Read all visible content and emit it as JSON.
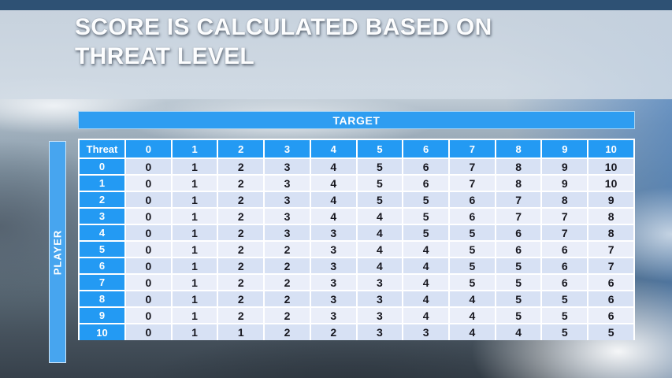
{
  "slide": {
    "title": "SCORE IS CALCULATED BASED ON THREAT LEVEL"
  },
  "chart_data": {
    "type": "table",
    "title": "SCORE IS CALCULATED BASED ON THREAT LEVEL",
    "columns_axis_label": "TARGET",
    "rows_axis_label": "PLAYER",
    "corner_label": "Threat",
    "column_labels": [
      "0",
      "1",
      "2",
      "3",
      "4",
      "5",
      "6",
      "7",
      "8",
      "9",
      "10"
    ],
    "row_labels": [
      "0",
      "1",
      "2",
      "3",
      "4",
      "5",
      "6",
      "7",
      "8",
      "9",
      "10"
    ],
    "values": [
      [
        0,
        1,
        2,
        3,
        4,
        5,
        6,
        7,
        8,
        9,
        10
      ],
      [
        0,
        1,
        2,
        3,
        4,
        5,
        6,
        7,
        8,
        9,
        10
      ],
      [
        0,
        1,
        2,
        3,
        4,
        5,
        5,
        6,
        7,
        8,
        9
      ],
      [
        0,
        1,
        2,
        3,
        4,
        4,
        5,
        6,
        7,
        7,
        8
      ],
      [
        0,
        1,
        2,
        3,
        3,
        4,
        5,
        5,
        6,
        7,
        8
      ],
      [
        0,
        1,
        2,
        2,
        3,
        4,
        4,
        5,
        6,
        6,
        7
      ],
      [
        0,
        1,
        2,
        2,
        3,
        4,
        4,
        5,
        5,
        6,
        7
      ],
      [
        0,
        1,
        2,
        2,
        3,
        3,
        4,
        5,
        5,
        6,
        6
      ],
      [
        0,
        1,
        2,
        2,
        3,
        3,
        4,
        4,
        5,
        5,
        6
      ],
      [
        0,
        1,
        2,
        2,
        3,
        3,
        4,
        4,
        5,
        5,
        6
      ],
      [
        0,
        1,
        1,
        2,
        2,
        3,
        3,
        4,
        4,
        5,
        5
      ]
    ]
  },
  "colors": {
    "accent_blue": "#239af3",
    "player_bar_blue": "#47a5ef",
    "band_dark": "#d7e1f4",
    "band_light": "#eaeef9",
    "top_strip_blue": "#2e5174",
    "title_text": "#fcfdfe",
    "cell_text": "#17171f"
  }
}
